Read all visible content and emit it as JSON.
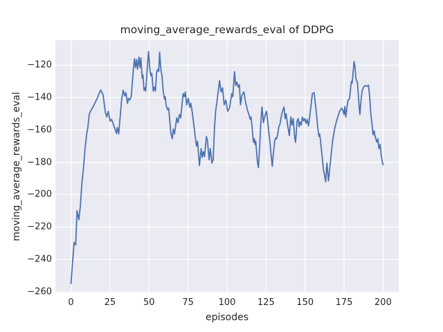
{
  "figure": {
    "background": "#ffffff",
    "axes_background": "#eaeaf2",
    "grid_color": "#ffffff",
    "text_color": "#262626"
  },
  "chart_data": {
    "type": "line",
    "title": "moving_average_rewards_eval of DDPG",
    "xlabel": "episodes",
    "ylabel": "moving_average_rewards_eval",
    "xlim": [
      -10,
      210
    ],
    "ylim": [
      -260.5,
      -104.5
    ],
    "xticks": [
      0,
      25,
      50,
      75,
      100,
      125,
      150,
      175,
      200
    ],
    "xtick_labels": [
      "0",
      "25",
      "50",
      "75",
      "100",
      "125",
      "150",
      "175",
      "200"
    ],
    "yticks": [
      -120,
      -140,
      -160,
      -180,
      -200,
      -220,
      -240,
      -260
    ],
    "ytick_labels": [
      "−120",
      "−140",
      "−160",
      "−180",
      "−200",
      "−220",
      "−240",
      "−260"
    ],
    "grid": true,
    "legend": null,
    "line_color": "#4c72b0",
    "line_width": 1.8,
    "series": [
      {
        "name": "moving_average_rewards_eval",
        "points": [
          [
            0,
            -255
          ],
          [
            1,
            -242
          ],
          [
            2,
            -229.5
          ],
          [
            2.6,
            -230.5
          ],
          [
            3,
            -231
          ],
          [
            3.9,
            -210
          ],
          [
            5.1,
            -215.5
          ],
          [
            6,
            -207
          ],
          [
            7,
            -193
          ],
          [
            8,
            -183.5
          ],
          [
            9,
            -172
          ],
          [
            10,
            -163
          ],
          [
            10.8,
            -158.5
          ],
          [
            11.7,
            -150.5
          ],
          [
            12.5,
            -148.5
          ],
          [
            14,
            -146
          ],
          [
            15.5,
            -143
          ],
          [
            17,
            -140
          ],
          [
            18,
            -137.5
          ],
          [
            19.1,
            -135.3
          ],
          [
            20.6,
            -138.5
          ],
          [
            22,
            -149
          ],
          [
            22.9,
            -152
          ],
          [
            23.9,
            -148.5
          ],
          [
            25.1,
            -154.5
          ],
          [
            26,
            -153.5
          ],
          [
            27.9,
            -158.5
          ],
          [
            29.1,
            -162.2
          ],
          [
            29.7,
            -158.5
          ],
          [
            30.6,
            -162.5
          ],
          [
            31.5,
            -152
          ],
          [
            32.5,
            -141
          ],
          [
            33.5,
            -135.5
          ],
          [
            34.5,
            -139
          ],
          [
            35.2,
            -137
          ],
          [
            36.2,
            -143.5
          ],
          [
            36.9,
            -140.5
          ],
          [
            37.6,
            -141.5
          ],
          [
            38.6,
            -139.5
          ],
          [
            39.3,
            -131
          ],
          [
            40.1,
            -121
          ],
          [
            40.7,
            -116
          ],
          [
            41.3,
            -121.5
          ],
          [
            42,
            -116.5
          ],
          [
            42.6,
            -122.5
          ],
          [
            43.5,
            -115
          ],
          [
            44.1,
            -121.5
          ],
          [
            44.8,
            -115.5
          ],
          [
            45.6,
            -128
          ],
          [
            46.1,
            -126
          ],
          [
            46.8,
            -135.5
          ],
          [
            47.3,
            -134
          ],
          [
            47.9,
            -136
          ],
          [
            48.7,
            -125
          ],
          [
            49.7,
            -111.5
          ],
          [
            50.5,
            -122.5
          ],
          [
            51.2,
            -126.5
          ],
          [
            51.8,
            -125
          ],
          [
            52.7,
            -136
          ],
          [
            53.4,
            -133.5
          ],
          [
            54.1,
            -136
          ],
          [
            54.9,
            -124
          ],
          [
            55.7,
            -122.5
          ],
          [
            56.2,
            -124
          ],
          [
            56.8,
            -112
          ],
          [
            57.6,
            -122.5
          ],
          [
            58.3,
            -126.5
          ],
          [
            59.1,
            -136
          ],
          [
            59.9,
            -141
          ],
          [
            60.4,
            -139.5
          ],
          [
            61,
            -145
          ],
          [
            61.9,
            -147.5
          ],
          [
            62.6,
            -146.5
          ],
          [
            64,
            -162
          ],
          [
            64.9,
            -165.5
          ],
          [
            65.6,
            -159.5
          ],
          [
            66.3,
            -162.5
          ],
          [
            67.8,
            -152.5
          ],
          [
            68.6,
            -155.5
          ],
          [
            69.5,
            -150.5
          ],
          [
            70.3,
            -152.5
          ],
          [
            71.9,
            -137.5
          ],
          [
            72.6,
            -139.5
          ],
          [
            73.3,
            -136.5
          ],
          [
            74.1,
            -144.5
          ],
          [
            75.2,
            -140.5
          ],
          [
            76.1,
            -146
          ],
          [
            76.8,
            -143.5
          ],
          [
            77.9,
            -150.5
          ],
          [
            79.6,
            -164
          ],
          [
            80.4,
            -170
          ],
          [
            81.1,
            -167
          ],
          [
            82.3,
            -182
          ],
          [
            83.4,
            -171.5
          ],
          [
            84.1,
            -177
          ],
          [
            84.8,
            -173.5
          ],
          [
            85.6,
            -176.5
          ],
          [
            86.8,
            -164
          ],
          [
            87.5,
            -167
          ],
          [
            88.5,
            -178.5
          ],
          [
            89.3,
            -171.5
          ],
          [
            90.3,
            -180.5
          ],
          [
            91.1,
            -178.5
          ],
          [
            92,
            -158
          ],
          [
            92.7,
            -148.5
          ],
          [
            93.6,
            -142
          ],
          [
            95.2,
            -129.5
          ],
          [
            96.2,
            -136.5
          ],
          [
            97.1,
            -134
          ],
          [
            98.2,
            -144.5
          ],
          [
            99.2,
            -141.5
          ],
          [
            100.4,
            -148.5
          ],
          [
            101.6,
            -146.5
          ],
          [
            103,
            -137.5
          ],
          [
            103.7,
            -139.5
          ],
          [
            104.8,
            -124
          ],
          [
            105.5,
            -132.5
          ],
          [
            106.3,
            -130.5
          ],
          [
            107.1,
            -133.5
          ],
          [
            107.9,
            -132
          ],
          [
            108.6,
            -144.5
          ],
          [
            109.6,
            -138.5
          ],
          [
            110.8,
            -136.5
          ],
          [
            112,
            -143.5
          ],
          [
            113,
            -147.5
          ],
          [
            114.2,
            -151
          ],
          [
            114.9,
            -153.5
          ],
          [
            115.4,
            -152
          ],
          [
            116,
            -158
          ],
          [
            116.9,
            -167.5
          ],
          [
            117.5,
            -165.5
          ],
          [
            117.9,
            -169
          ],
          [
            118.4,
            -167
          ],
          [
            119.4,
            -179
          ],
          [
            120.1,
            -183.3
          ],
          [
            120.9,
            -170.5
          ],
          [
            121.6,
            -156.5
          ],
          [
            122.4,
            -145.8
          ],
          [
            123.3,
            -155.5
          ],
          [
            124.1,
            -152
          ],
          [
            125.3,
            -148.5
          ],
          [
            126.1,
            -155
          ],
          [
            126.8,
            -161.5
          ],
          [
            127.5,
            -167.5
          ],
          [
            128.3,
            -176
          ],
          [
            129,
            -182.5
          ],
          [
            129.8,
            -173.5
          ],
          [
            130.5,
            -167
          ],
          [
            131.1,
            -165
          ],
          [
            131.7,
            -165.5
          ],
          [
            132.3,
            -163.5
          ],
          [
            133.2,
            -158
          ],
          [
            133.9,
            -156.5
          ],
          [
            135,
            -150.5
          ],
          [
            135.7,
            -148
          ],
          [
            136.5,
            -145.8
          ],
          [
            137.2,
            -153
          ],
          [
            137.9,
            -150
          ],
          [
            138.7,
            -156.5
          ],
          [
            139.9,
            -163.5
          ],
          [
            140.9,
            -152
          ],
          [
            141.6,
            -157
          ],
          [
            142.4,
            -153
          ],
          [
            143.4,
            -165
          ],
          [
            143.9,
            -167.7
          ],
          [
            144.9,
            -154.5
          ],
          [
            145.6,
            -153
          ],
          [
            146.2,
            -158
          ],
          [
            146.8,
            -155
          ],
          [
            147.5,
            -157
          ],
          [
            148.3,
            -152
          ],
          [
            149,
            -154.5
          ],
          [
            149.8,
            -153
          ],
          [
            150.6,
            -156
          ],
          [
            151.3,
            -153.5
          ],
          [
            152.2,
            -157.5
          ],
          [
            153.3,
            -149
          ],
          [
            154.7,
            -137.5
          ],
          [
            155.8,
            -137
          ],
          [
            157.3,
            -150
          ],
          [
            158.1,
            -158.5
          ],
          [
            158.9,
            -164
          ],
          [
            159.4,
            -162.5
          ],
          [
            159.9,
            -166.5
          ],
          [
            160.9,
            -176
          ],
          [
            161.7,
            -184
          ],
          [
            163.2,
            -192
          ],
          [
            164,
            -180.5
          ],
          [
            165,
            -191.5
          ],
          [
            166.2,
            -180
          ],
          [
            167.6,
            -167
          ],
          [
            169.1,
            -158.5
          ],
          [
            170.6,
            -153
          ],
          [
            172.1,
            -148.5
          ],
          [
            173.4,
            -146.5
          ],
          [
            174.3,
            -148
          ],
          [
            175,
            -150.5
          ],
          [
            175.5,
            -145.5
          ],
          [
            176.1,
            -152
          ],
          [
            177,
            -145
          ],
          [
            177.6,
            -141.5
          ],
          [
            178.5,
            -140.8
          ],
          [
            179.3,
            -133
          ],
          [
            179.7,
            -130
          ],
          [
            180.2,
            -131
          ],
          [
            181.4,
            -117.8
          ],
          [
            182,
            -121
          ],
          [
            182.5,
            -128
          ],
          [
            183,
            -129.5
          ],
          [
            183.5,
            -130.2
          ],
          [
            184.1,
            -138
          ],
          [
            184.7,
            -146.5
          ],
          [
            185.1,
            -150.5
          ],
          [
            185.9,
            -141
          ],
          [
            186.6,
            -136
          ],
          [
            187.4,
            -133.7
          ],
          [
            188.4,
            -132.6
          ],
          [
            189.9,
            -133
          ],
          [
            190.6,
            -132.3
          ],
          [
            191.4,
            -139.5
          ],
          [
            192.1,
            -149.5
          ],
          [
            193,
            -157.5
          ],
          [
            193.6,
            -163
          ],
          [
            194.2,
            -160.5
          ],
          [
            194.8,
            -163.5
          ],
          [
            195.9,
            -167.5
          ],
          [
            196.6,
            -165.5
          ],
          [
            197.3,
            -171.5
          ],
          [
            198.1,
            -169
          ],
          [
            198.8,
            -175.5
          ],
          [
            199.6,
            -180.5
          ],
          [
            200,
            -181.5
          ]
        ]
      }
    ]
  }
}
